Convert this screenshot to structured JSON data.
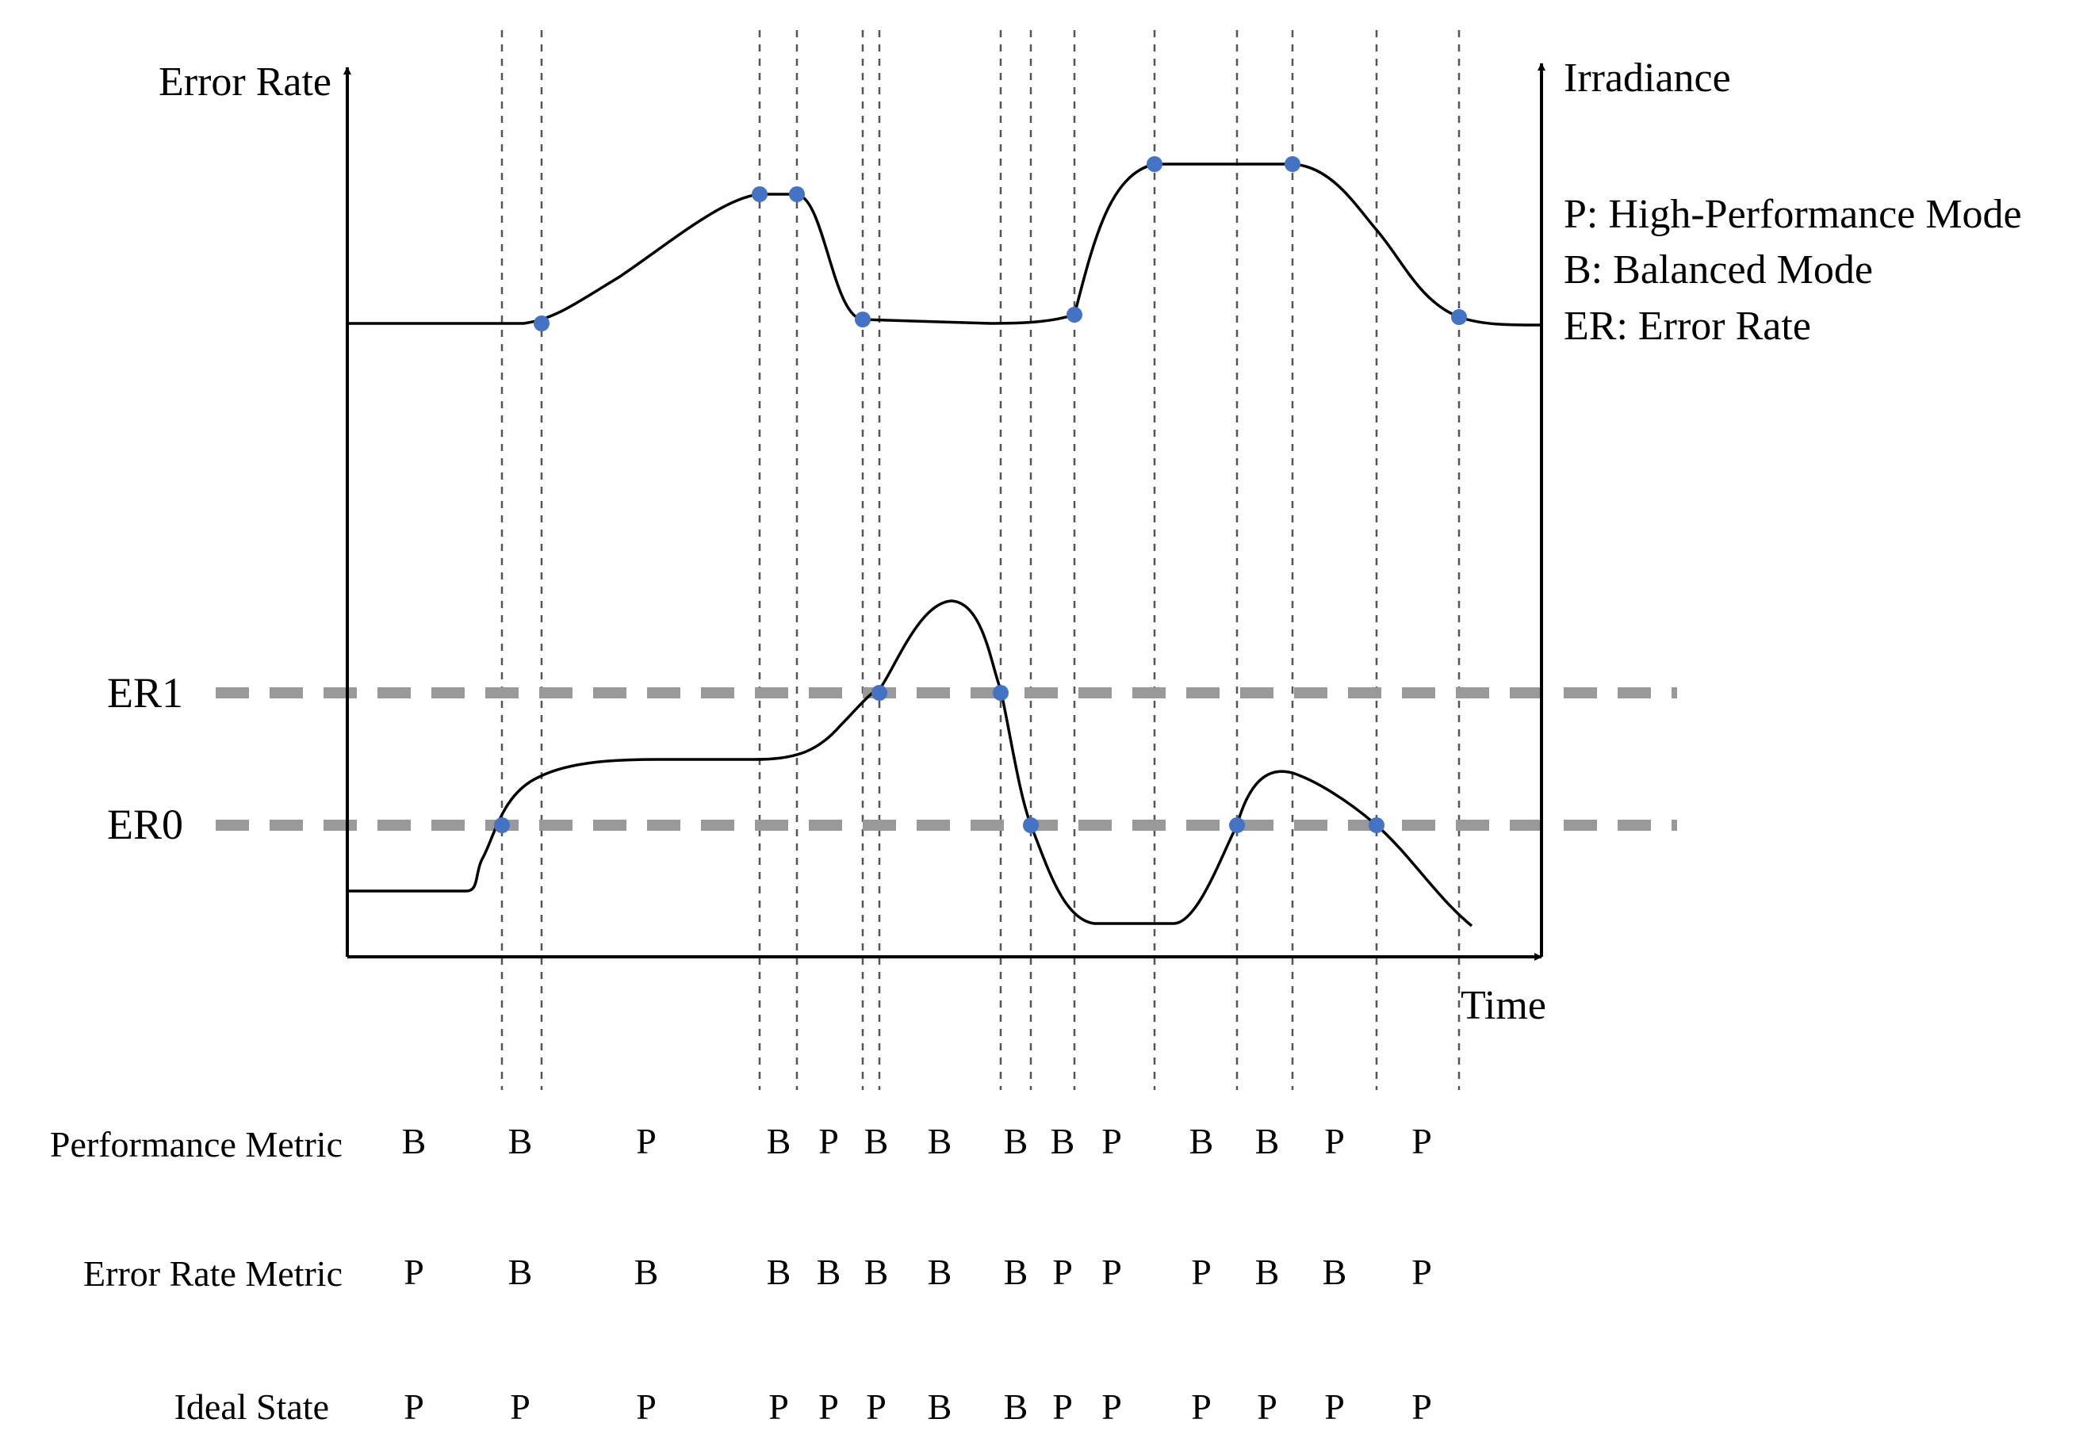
{
  "axes": {
    "left_label": "Error Rate",
    "right_label": "Irradiance",
    "bottom_label": "Time"
  },
  "legend": [
    {
      "key": "P",
      "text": "P: High-Performance Mode"
    },
    {
      "key": "B",
      "text": "B: Balanced Mode"
    },
    {
      "key": "ER",
      "text": "ER: Error Rate"
    }
  ],
  "thresholds": [
    {
      "id": "er1",
      "label": "ER1"
    },
    {
      "id": "er0",
      "label": "ER0"
    }
  ],
  "colors": {
    "curve": "#000000",
    "marker": "#4472C4",
    "threshold": "#999999",
    "guide": "#555555"
  },
  "rows": [
    {
      "id": "performance",
      "label": "Performance Metric",
      "modes": [
        "B",
        "B",
        "P",
        "B",
        "P",
        "B",
        "B",
        "B",
        "B",
        "P",
        "B",
        "B",
        "P",
        "P"
      ]
    },
    {
      "id": "error-rate",
      "label": "Error Rate Metric",
      "modes": [
        "P",
        "B",
        "B",
        "B",
        "B",
        "B",
        "B",
        "B",
        "P",
        "P",
        "P",
        "B",
        "B",
        "P"
      ]
    },
    {
      "id": "ideal",
      "label": "Ideal State",
      "modes": [
        "P",
        "P",
        "P",
        "P",
        "P",
        "P",
        "B",
        "B",
        "P",
        "P",
        "P",
        "P",
        "P",
        "P"
      ]
    }
  ]
}
